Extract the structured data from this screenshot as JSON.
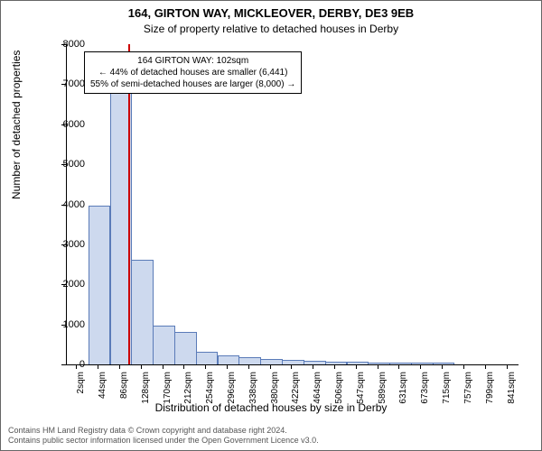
{
  "chart": {
    "type": "histogram",
    "title_line1": "164, GIRTON WAY, MICKLEOVER, DERBY, DE3 9EB",
    "title_line2": "Size of property relative to detached houses in Derby",
    "ylabel": "Number of detached properties",
    "xlabel": "Distribution of detached houses by size in Derby",
    "background_color": "#ffffff",
    "bar_fill": "#cdd9ee",
    "bar_stroke": "#5a7bb8",
    "refline_color": "#cc0000",
    "ylim_max": 8000,
    "yticks": [
      0,
      1000,
      2000,
      3000,
      4000,
      5000,
      6000,
      7000,
      8000
    ],
    "xtick_labels": [
      "2sqm",
      "44sqm",
      "86sqm",
      "128sqm",
      "170sqm",
      "212sqm",
      "254sqm",
      "296sqm",
      "338sqm",
      "380sqm",
      "422sqm",
      "464sqm",
      "506sqm",
      "547sqm",
      "589sqm",
      "631sqm",
      "673sqm",
      "715sqm",
      "757sqm",
      "799sqm",
      "841sqm"
    ],
    "bars": [
      0,
      3950,
      6750,
      2600,
      950,
      800,
      300,
      200,
      150,
      120,
      90,
      70,
      50,
      40,
      30,
      25,
      20,
      15,
      10,
      5,
      5
    ],
    "refline_x_index": 2.4,
    "annotation": {
      "line1": "164 GIRTON WAY: 102sqm",
      "line2": "← 44% of detached houses are smaller (6,441)",
      "line3": "55% of semi-detached houses are larger (8,000) →"
    },
    "footer_line1": "Contains HM Land Registry data © Crown copyright and database right 2024.",
    "footer_line2": "Contains public sector information licensed under the Open Government Licence v3.0.",
    "title_fontsize": 13,
    "subtitle_fontsize": 12,
    "label_fontsize": 12,
    "tick_fontsize": 11,
    "footer_fontsize": 9
  }
}
